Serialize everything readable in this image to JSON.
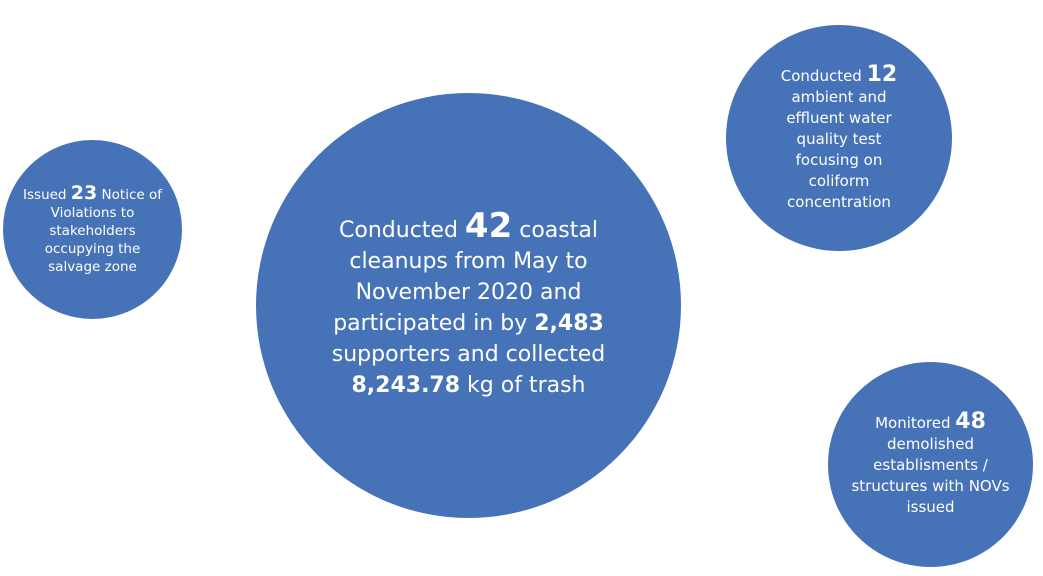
{
  "colors": {
    "bubble_fill": "#4672B8",
    "text": "#FFFFFF",
    "background": "#FFFFFF"
  },
  "bubbles": {
    "left": {
      "pre": "Issued ",
      "num": "23",
      "post": " Notice of Violations to stakeholders occupying the salvage zone"
    },
    "center": {
      "pre": "Conducted ",
      "num1": "42",
      "mid1": " coastal cleanups from May to November 2020 and participated in by ",
      "num2": "2,483",
      "mid2": " supporters and collected ",
      "num3": "8,243.78",
      "post": " kg of trash"
    },
    "top_right": {
      "pre": "Conducted ",
      "num": "12",
      "post": " ambient and effluent water quality test focusing on coliform concentration"
    },
    "bottom_right": {
      "pre": "Monitored ",
      "num": "48",
      "post": " demolished establisments / structures with NOVs issued"
    }
  }
}
